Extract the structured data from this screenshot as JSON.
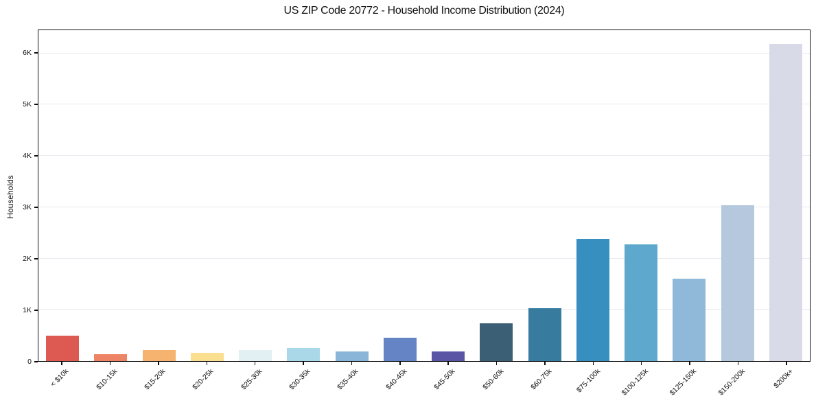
{
  "chart_data": {
    "type": "bar",
    "title": "US ZIP Code 20772 - Household Income Distribution (2024)",
    "xlabel": "",
    "ylabel": "Households",
    "categories": [
      "< $10k",
      "$10-15k",
      "$15-20k",
      "$20-25k",
      "$25-30k",
      "$30-35k",
      "$35-40k",
      "$40-45k",
      "$45-50k",
      "$50-60k",
      "$60-75k",
      "$75-100k",
      "$100-125k",
      "$125-150k",
      "$150-200k",
      "$200k+"
    ],
    "values": [
      495,
      130,
      210,
      155,
      215,
      250,
      190,
      450,
      190,
      730,
      1035,
      2380,
      2270,
      1610,
      3035,
      6180
    ],
    "bar_colors": [
      "#dc5a52",
      "#ee8466",
      "#f6b26f",
      "#fbdf90",
      "#e2f0f4",
      "#abd8e8",
      "#8ab5d9",
      "#6484c6",
      "#5a55a5",
      "#3b6075",
      "#377c9f",
      "#378fc0",
      "#5fa8cd",
      "#90b8d8",
      "#b6c8de",
      "#d8dae8"
    ],
    "yticks": [
      {
        "label": "0",
        "value": 0
      },
      {
        "label": "1K",
        "value": 1000
      },
      {
        "label": "2K",
        "value": 2000
      },
      {
        "label": "3K",
        "value": 3000
      },
      {
        "label": "4K",
        "value": 4000
      },
      {
        "label": "5K",
        "value": 5000
      },
      {
        "label": "6K",
        "value": 6000
      }
    ],
    "ylim": [
      0,
      6450
    ],
    "grid": "horizontal-only",
    "legend": "none",
    "colors": {
      "background": "#ffffff",
      "axis": "#0d0d0d",
      "grid": "#e9e9f0",
      "text": "#111111"
    }
  }
}
